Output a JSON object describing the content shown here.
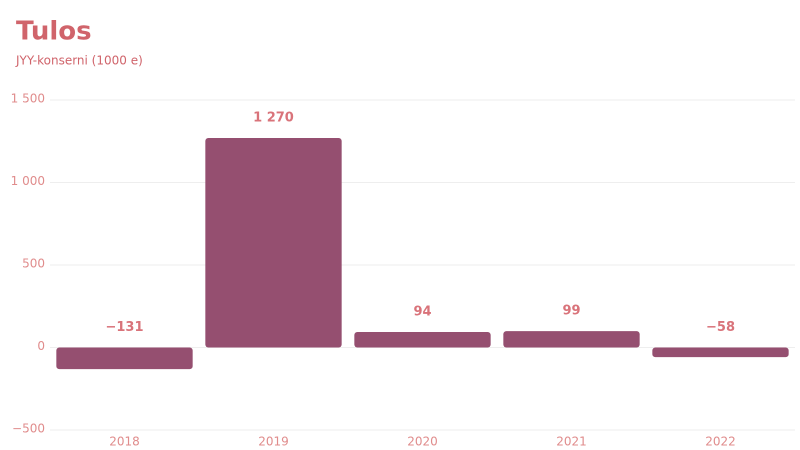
{
  "chart_data": {
    "type": "bar",
    "title": "Tulos",
    "subtitle": "JYY-konserni (1000 e)",
    "categories": [
      "2018",
      "2019",
      "2020",
      "2021",
      "2022"
    ],
    "values": [
      -131,
      1270,
      94,
      99,
      -58
    ],
    "value_labels": [
      "−131",
      "1 270",
      "94",
      "99",
      "−58"
    ],
    "color": "#954f70",
    "ylim": [
      -500,
      1500
    ],
    "yticks": [
      {
        "value": -500,
        "label": "−500"
      },
      0,
      500,
      {
        "value": 1000,
        "label": "1 000"
      },
      {
        "value": 1500,
        "label": "1 500"
      }
    ],
    "grid": true
  }
}
